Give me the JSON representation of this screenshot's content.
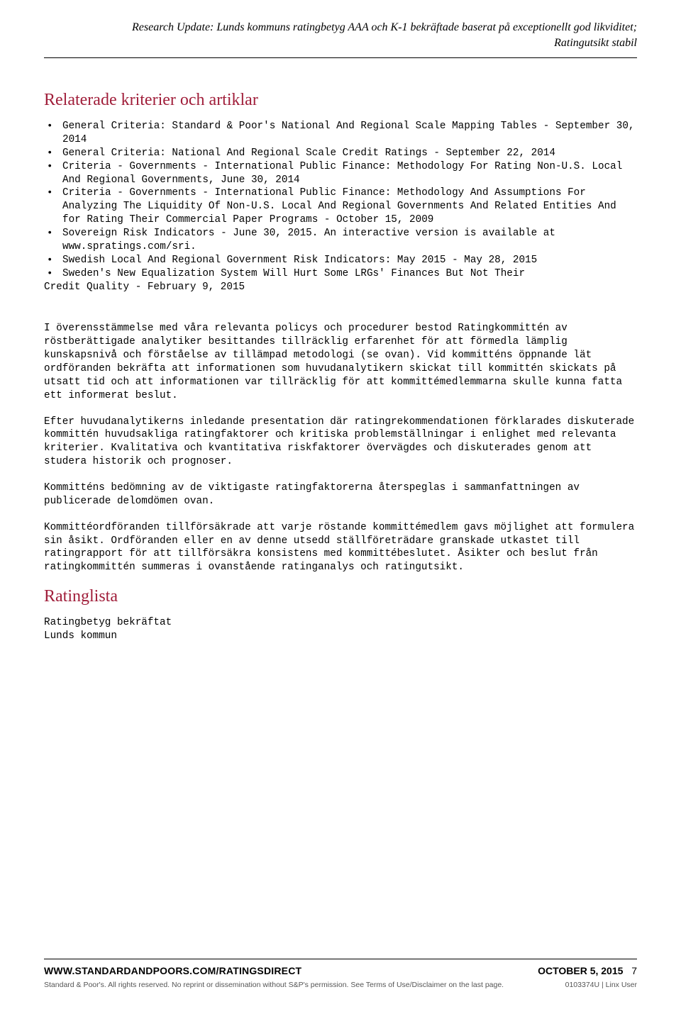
{
  "header": {
    "title_line1": "Research Update: Lunds kommuns ratingbetyg AAA och K-1 bekräftade baserat på exceptionellt god likviditet;",
    "title_line2": "Ratingutsikt stabil"
  },
  "section1": {
    "heading": "Relaterade kriterier och artiklar",
    "bullets": [
      "General Criteria: Standard & Poor's National And Regional Scale Mapping Tables - September 30, 2014",
      "General Criteria: National And Regional Scale Credit Ratings - September 22, 2014",
      "Criteria - Governments - International Public Finance: Methodology For Rating Non-U.S. Local And Regional Governments, June 30, 2014",
      "Criteria - Governments - International Public Finance: Methodology And Assumptions For Analyzing The Liquidity Of Non-U.S. Local And Regional Governments And Related Entities And for Rating Their Commercial Paper Programs - October 15, 2009",
      "Sovereign Risk Indicators - June 30, 2015. An interactive version is available at www.spratings.com/sri.",
      "Swedish Local And Regional Government Risk Indicators: May 2015 - May 28, 2015",
      "Sweden's New Equalization System Will Hurt Some LRGs' Finances But Not Their"
    ],
    "continuation": "Credit Quality - February 9, 2015"
  },
  "body_paragraphs": [
    "I överensstämmelse med våra relevanta policys och procedurer bestod Ratingkommittén av röstberättigade analytiker besittandes tillräcklig erfarenhet för att förmedla lämplig kunskapsnivå och förståelse av tillämpad metodologi (se ovan). Vid kommitténs öppnande lät ordföranden bekräfta att informationen som huvudanalytikern skickat till kommittén skickats på utsatt tid och att informationen var tillräcklig för att kommittémedlemmarna skulle kunna fatta ett informerat beslut.",
    "Efter huvudanalytikerns inledande presentation där ratingrekommendationen förklarades diskuterade kommittén huvudsakliga ratingfaktorer och kritiska problemställningar i enlighet med relevanta kriterier. Kvalitativa och kvantitativa riskfaktorer övervägdes och diskuterades genom att studera historik och prognoser.",
    "Kommitténs bedömning av de viktigaste ratingfaktorerna återspeglas i sammanfattningen av publicerade delomdömen ovan.",
    "Kommittéordföranden tillförsäkrade att varje röstande kommittémedlem gavs möjlighet att formulera sin åsikt. Ordföranden eller en av denne utsedd ställföreträdare granskade utkastet till ratingrapport för att tillförsäkra konsistens med kommittébeslutet. Åsikter och beslut från ratingkommittén summeras i ovanstående ratinganalys och ratingutsikt."
  ],
  "section2": {
    "heading": "Ratinglista",
    "line1": "Ratingbetyg bekräftat",
    "line2": "Lunds kommun"
  },
  "footer": {
    "url": "WWW.STANDARDANDPOORS.COM/RATINGSDIRECT",
    "date": "OCTOBER 5, 2015",
    "page": "7",
    "copyright": "Standard & Poor's. All rights reserved. No reprint or dissemination without S&P's permission. See Terms of Use/Disclaimer on the last page.",
    "docid": "0103374U | Linx User"
  },
  "colors": {
    "heading": "#a01e3a",
    "body_text": "#000000",
    "footer_gray": "#555555",
    "background": "#ffffff"
  },
  "fonts": {
    "header_serif_italic": "Georgia italic 16px",
    "section_heading": "Georgia 24px",
    "body_mono": "Courier New 14.3px",
    "footer_sans_bold": "Arial bold 14px",
    "footer_sans_small": "Arial 10.5px"
  }
}
